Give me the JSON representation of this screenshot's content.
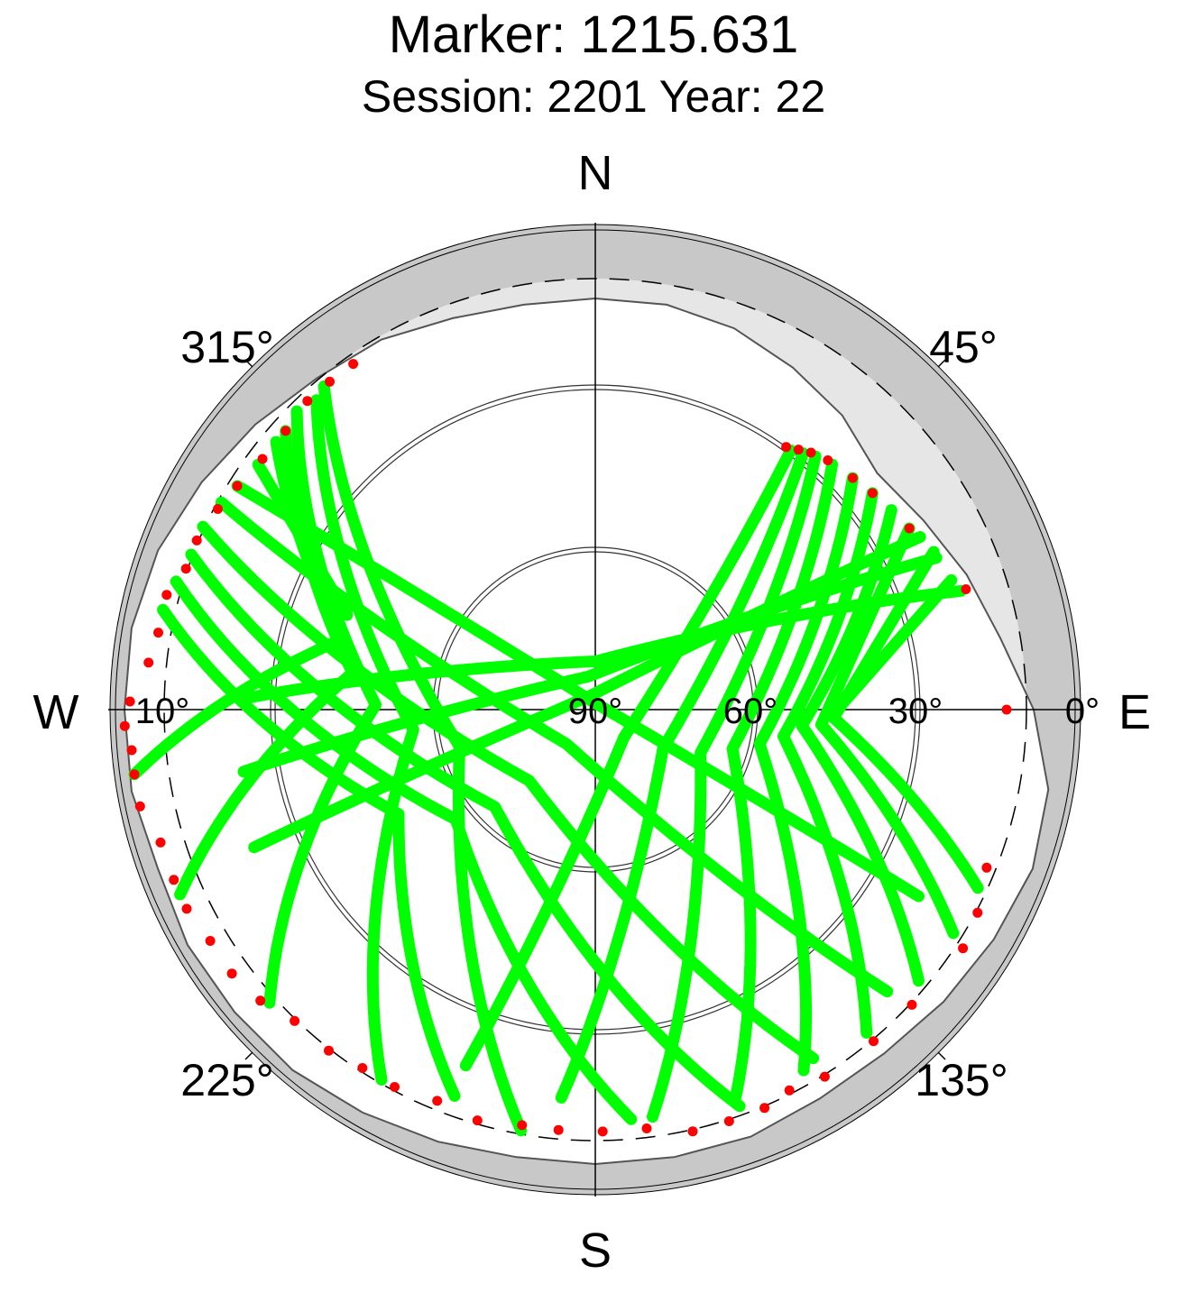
{
  "chart_data": {
    "type": "scatter",
    "projection": "polar-sky",
    "title": "Marker: 1215.631",
    "subtitle": "Session: 2201 Year: 22",
    "compass": {
      "north": "N",
      "east": "E",
      "south": "S",
      "west": "W"
    },
    "azimuth_labels": [
      {
        "az": 45,
        "text": "45°"
      },
      {
        "az": 135,
        "text": "135°"
      },
      {
        "az": 225,
        "text": "225°"
      },
      {
        "az": 315,
        "text": "315°"
      }
    ],
    "elevation_labels": [
      {
        "el": 90,
        "text": "90°"
      },
      {
        "el": 60,
        "text": "60°"
      },
      {
        "el": 30,
        "text": "30°"
      },
      {
        "el": 0,
        "text": "0°"
      },
      {
        "el": 10,
        "text": "10°"
      }
    ],
    "elevation_circles": [
      30,
      60
    ],
    "elevation_mask_deg": 10,
    "colors": {
      "track": "#00ff00",
      "endpoint": "#ff0000",
      "horizon_ring": "#c8c8c8",
      "mask_area": "#e6e6e6"
    },
    "horizon_profile": [
      {
        "az": 0,
        "el": 14
      },
      {
        "az": 10,
        "el": 14
      },
      {
        "az": 20,
        "el": 15
      },
      {
        "az": 30,
        "el": 17
      },
      {
        "az": 40,
        "el": 19
      },
      {
        "az": 50,
        "el": 22
      },
      {
        "az": 60,
        "el": 20
      },
      {
        "az": 70,
        "el": 17
      },
      {
        "az": 80,
        "el": 14
      },
      {
        "az": 90,
        "el": 9
      },
      {
        "az": 100,
        "el": 5
      },
      {
        "az": 110,
        "el": 4
      },
      {
        "az": 120,
        "el": 5
      },
      {
        "az": 130,
        "el": 6
      },
      {
        "az": 140,
        "el": 7
      },
      {
        "az": 150,
        "el": 7
      },
      {
        "az": 160,
        "el": 6
      },
      {
        "az": 170,
        "el": 6
      },
      {
        "az": 180,
        "el": 6
      },
      {
        "az": 190,
        "el": 6
      },
      {
        "az": 200,
        "el": 5
      },
      {
        "az": 210,
        "el": 4
      },
      {
        "az": 220,
        "el": 3
      },
      {
        "az": 230,
        "el": 3
      },
      {
        "az": 240,
        "el": 3
      },
      {
        "az": 250,
        "el": 4
      },
      {
        "az": 260,
        "el": 3
      },
      {
        "az": 270,
        "el": 3
      },
      {
        "az": 280,
        "el": 3
      },
      {
        "az": 290,
        "el": 4
      },
      {
        "az": 300,
        "el": 6
      },
      {
        "az": 310,
        "el": 8
      },
      {
        "az": 320,
        "el": 10
      },
      {
        "az": 330,
        "el": 11
      },
      {
        "az": 340,
        "el": 13
      },
      {
        "az": 350,
        "el": 14
      },
      {
        "az": 360,
        "el": 14
      }
    ],
    "tracks": {
      "west_group": {
        "starts": [
          {
            "az": 325,
            "el": 12
          },
          {
            "az": 321,
            "el": 12
          },
          {
            "az": 317,
            "el": 12
          },
          {
            "az": 312,
            "el": 13
          },
          {
            "az": 307,
            "el": 13
          },
          {
            "az": 302,
            "el": 12
          },
          {
            "az": 298,
            "el": 11
          },
          {
            "az": 293,
            "el": 10
          },
          {
            "az": 289,
            "el": 10
          },
          {
            "az": 285,
            "el": 8
          },
          {
            "az": 280,
            "el": 8
          },
          {
            "az": 276,
            "el": 7
          },
          {
            "az": 271,
            "el": 4
          },
          {
            "az": 268,
            "el": 3
          },
          {
            "az": 265,
            "el": 4
          },
          {
            "az": 262,
            "el": 4
          },
          {
            "az": 258,
            "el": 4
          },
          {
            "az": 253,
            "el": 6
          },
          {
            "az": 248,
            "el": 6
          },
          {
            "az": 244,
            "el": 6
          },
          {
            "az": 239,
            "el": 7
          },
          {
            "az": 234,
            "el": 7
          },
          {
            "az": 229,
            "el": 8
          },
          {
            "az": 224,
            "el": 10
          },
          {
            "az": 218,
            "el": 10
          },
          {
            "az": 213,
            "el": 11
          },
          {
            "az": 208,
            "el": 11
          },
          {
            "az": 202,
            "el": 12
          },
          {
            "az": 196,
            "el": 11
          },
          {
            "az": 190,
            "el": 12
          },
          {
            "az": 185,
            "el": 12
          },
          {
            "az": 179,
            "el": 12
          },
          {
            "az": 173,
            "el": 12
          }
        ],
        "arcs": [
          {
            "from": {
              "az": 320,
              "el": 12
            },
            "to": {
              "az": 190,
              "el": 11
            }
          },
          {
            "from": {
              "az": 318,
              "el": 13
            },
            "to": {
              "az": 210,
              "el": 11
            }
          },
          {
            "from": {
              "az": 315,
              "el": 12
            },
            "to": {
              "az": 228,
              "el": 9
            }
          },
          {
            "from": {
              "az": 312,
              "el": 13
            },
            "to": {
              "az": 246,
              "el": 6
            }
          },
          {
            "from": {
              "az": 310,
              "el": 13
            },
            "to": {
              "az": 262,
              "el": 4
            }
          },
          {
            "from": {
              "az": 306,
              "el": 13
            },
            "to": {
              "az": 276,
              "el": 7
            }
          },
          {
            "from": {
              "az": 302,
              "el": 12
            },
            "to": {
              "az": 120,
              "el": 21
            }
          },
          {
            "from": {
              "az": 299,
              "el": 11
            },
            "to": {
              "az": 134,
              "el": 15
            }
          },
          {
            "from": {
              "az": 295,
              "el": 10
            },
            "to": {
              "az": 148,
              "el": 14
            }
          },
          {
            "from": {
              "az": 291,
              "el": 10
            },
            "to": {
              "az": 160,
              "el": 12
            }
          },
          {
            "from": {
              "az": 287,
              "el": 9
            },
            "to": {
              "az": 175,
              "el": 14
            }
          },
          {
            "from": {
              "az": 283,
              "el": 8
            },
            "to": {
              "az": 200,
              "el": 14
            }
          }
        ]
      },
      "east_group": {
        "starts": [
          {
            "az": 36,
            "el": 30
          },
          {
            "az": 38,
            "el": 29
          },
          {
            "az": 40,
            "el": 28
          },
          {
            "az": 43,
            "el": 27
          },
          {
            "az": 48,
            "el": 26
          },
          {
            "az": 52,
            "el": 25
          },
          {
            "az": 60,
            "el": 23
          },
          {
            "az": 72,
            "el": 18
          },
          {
            "az": 90,
            "el": 14
          },
          {
            "az": 112,
            "el": 12
          },
          {
            "az": 118,
            "el": 10
          },
          {
            "az": 123,
            "el": 9
          },
          {
            "az": 133,
            "el": 10
          },
          {
            "az": 140,
            "el": 10
          },
          {
            "az": 148,
            "el": 10
          },
          {
            "az": 153,
            "el": 11
          },
          {
            "az": 157,
            "el": 10
          },
          {
            "az": 162,
            "el": 10
          },
          {
            "az": 167,
            "el": 10
          }
        ],
        "arcs": [
          {
            "from": {
              "az": 37,
              "el": 30
            },
            "to": {
              "az": 200,
              "el": 20
            }
          },
          {
            "from": {
              "az": 39,
              "el": 29
            },
            "to": {
              "az": 185,
              "el": 18
            }
          },
          {
            "from": {
              "az": 41,
              "el": 28
            },
            "to": {
              "az": 172,
              "el": 14
            }
          },
          {
            "from": {
              "az": 44,
              "el": 27
            },
            "to": {
              "az": 160,
              "el": 14
            }
          },
          {
            "from": {
              "az": 48,
              "el": 26
            },
            "to": {
              "az": 150,
              "el": 13
            }
          },
          {
            "from": {
              "az": 52,
              "el": 25
            },
            "to": {
              "az": 140,
              "el": 12
            }
          },
          {
            "from": {
              "az": 56,
              "el": 24
            },
            "to": {
              "az": 130,
              "el": 12
            }
          },
          {
            "from": {
              "az": 60,
              "el": 23
            },
            "to": {
              "az": 122,
              "el": 12
            }
          },
          {
            "from": {
              "az": 65,
              "el": 21
            },
            "to": {
              "az": 115,
              "el": 12
            }
          },
          {
            "from": {
              "az": 70,
              "el": 20
            },
            "to": {
              "az": 108,
              "el": 10
            }
          },
          {
            "from": {
              "az": 62,
              "el": 22
            },
            "to": {
              "az": 248,
              "el": 22
            }
          },
          {
            "from": {
              "az": 66,
              "el": 21
            },
            "to": {
              "az": 260,
              "el": 24
            }
          },
          {
            "from": {
              "az": 72,
              "el": 19
            },
            "to": {
              "az": 272,
              "el": 26
            }
          }
        ]
      }
    }
  }
}
